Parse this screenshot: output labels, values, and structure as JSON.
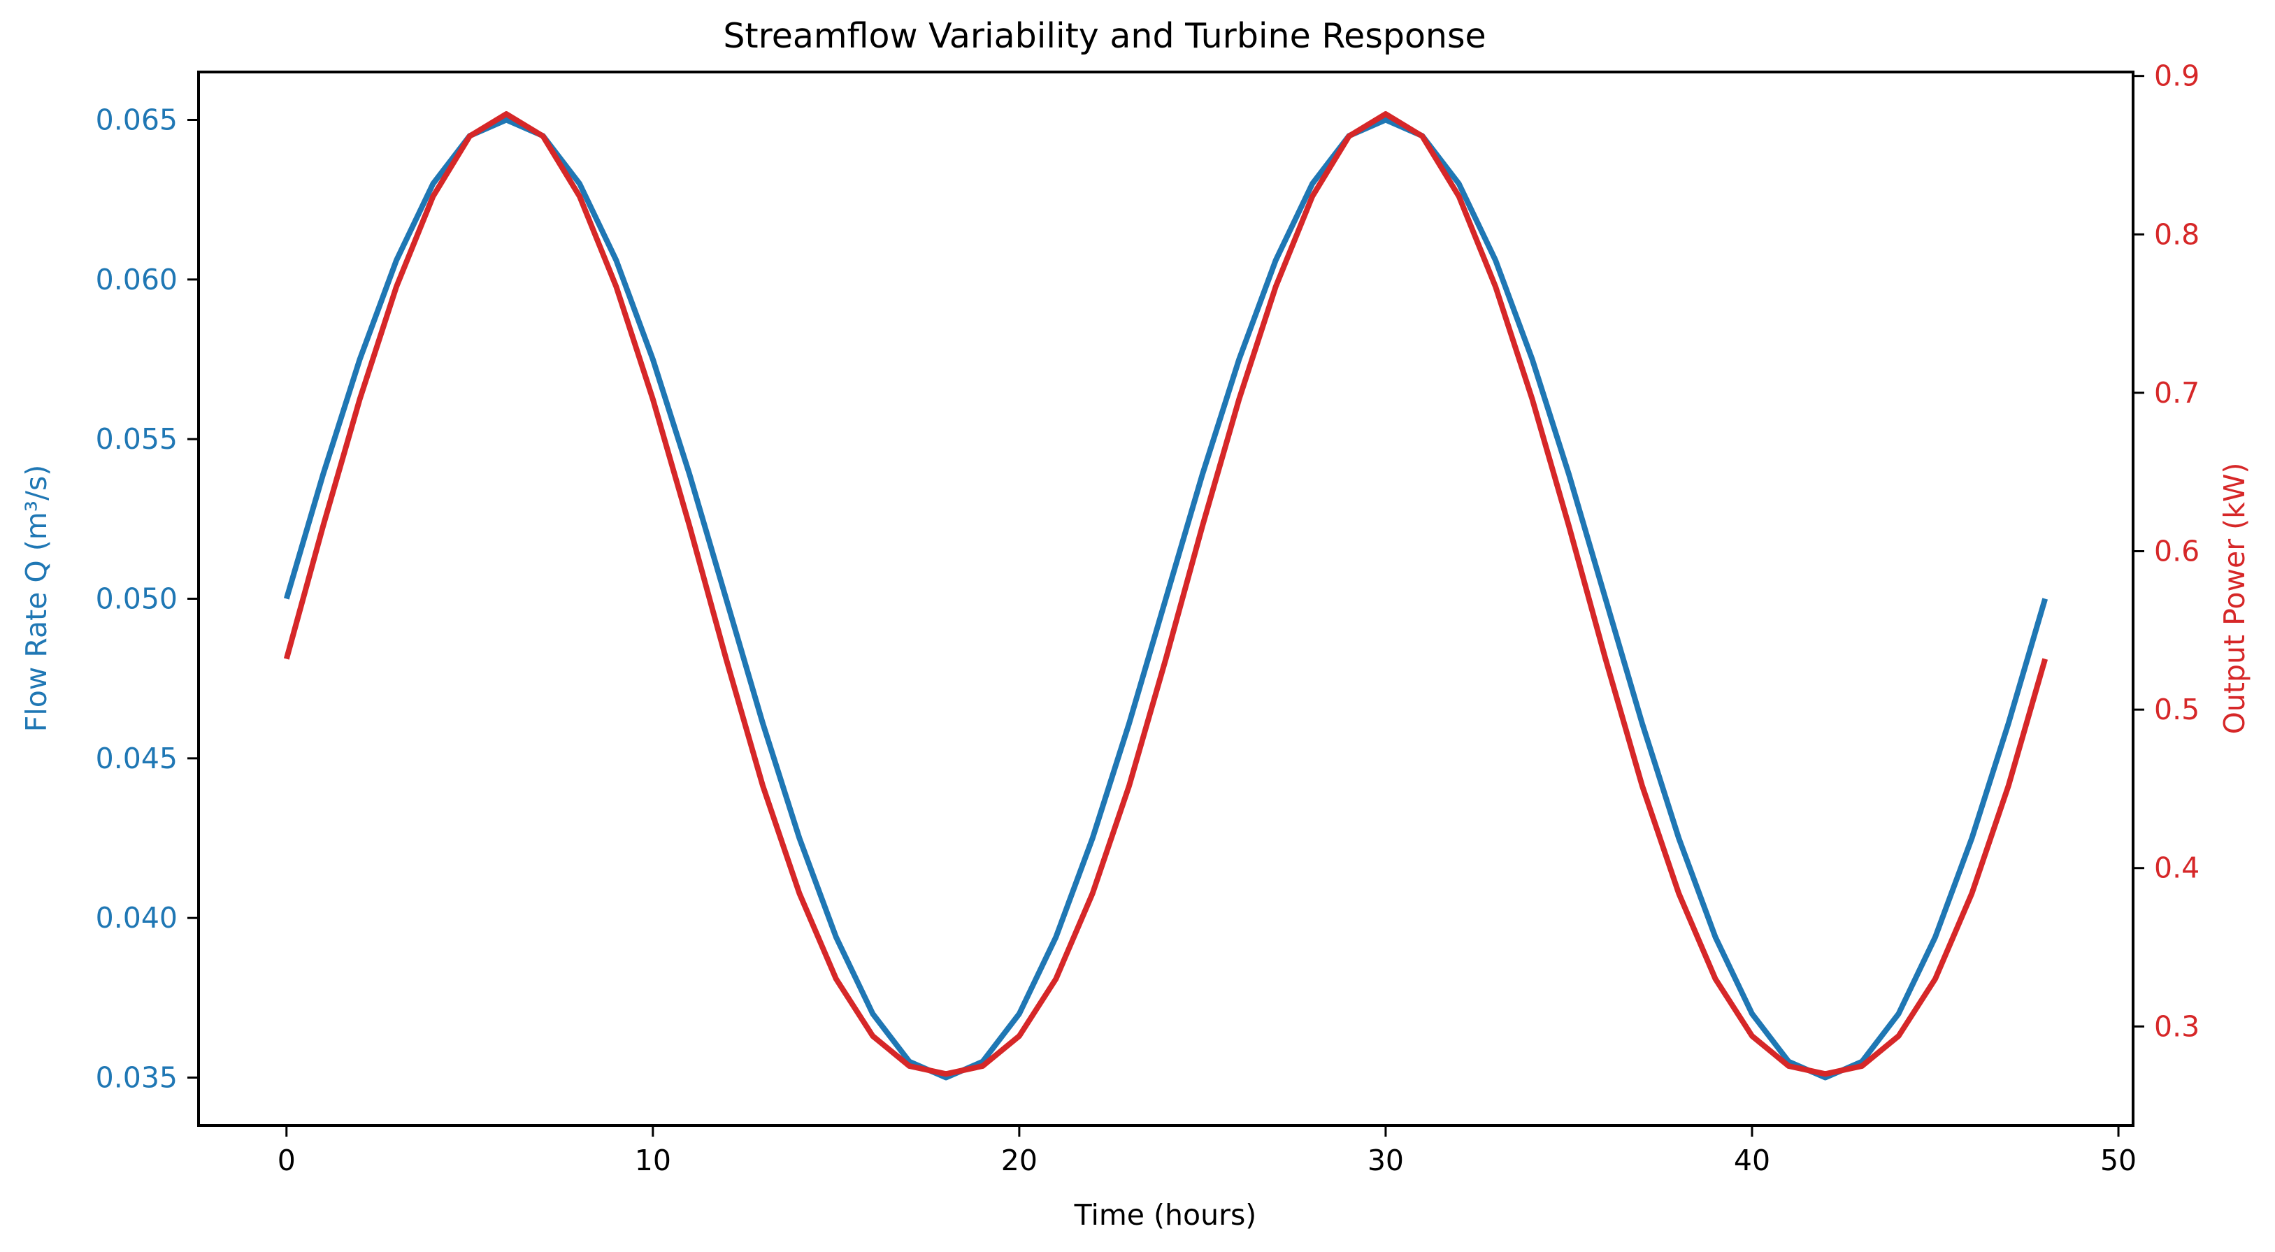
{
  "colors": {
    "flow": "#1f77b4",
    "power": "#d62728",
    "axis": "#000000",
    "background": "#ffffff"
  },
  "chart_data": {
    "type": "line",
    "title": "Streamflow Variability and Turbine Response",
    "xlabel": "Time (hours)",
    "ylabel_left": "Flow Rate Q (m³/s)",
    "ylabel_right": "Output Power (kW)",
    "xlim": [
      -2.4,
      50.4
    ],
    "ylim_left": [
      0.0335,
      0.0665
    ],
    "ylim_right": [
      0.2375,
      0.9025
    ],
    "x_ticks": [
      0,
      10,
      20,
      30,
      40,
      50
    ],
    "x_tick_labels": [
      "0",
      "10",
      "20",
      "30",
      "40",
      "50"
    ],
    "y_left_ticks": [
      0.035,
      0.04,
      0.045,
      0.05,
      0.055,
      0.06,
      0.065
    ],
    "y_left_tick_labels": [
      "0.035",
      "0.040",
      "0.045",
      "0.050",
      "0.055",
      "0.060",
      "0.065"
    ],
    "y_right_ticks": [
      0.3,
      0.4,
      0.5,
      0.6,
      0.7,
      0.8,
      0.9
    ],
    "y_right_tick_labels": [
      "0.3",
      "0.4",
      "0.5",
      "0.6",
      "0.7",
      "0.8",
      "0.9"
    ],
    "grid": false,
    "series": [
      {
        "name": "Flow Rate Q",
        "axis": "left",
        "color": "#1f77b4",
        "x": [
          0,
          1,
          2,
          3,
          4,
          5,
          6,
          7,
          8,
          9,
          10,
          11,
          12,
          13,
          14,
          15,
          16,
          17,
          18,
          19,
          20,
          21,
          22,
          23,
          24,
          25,
          26,
          27,
          28,
          29,
          30,
          31,
          32,
          33,
          34,
          35,
          36,
          37,
          38,
          39,
          40,
          41,
          42,
          43,
          44,
          45,
          46,
          47,
          48
        ],
        "y": [
          0.05,
          0.0539,
          0.0575,
          0.0606,
          0.063,
          0.0645,
          0.065,
          0.0645,
          0.063,
          0.0606,
          0.0575,
          0.0539,
          0.05,
          0.0461,
          0.0425,
          0.0394,
          0.037,
          0.0355,
          0.035,
          0.0355,
          0.037,
          0.0394,
          0.0425,
          0.0461,
          0.05,
          0.0539,
          0.0575,
          0.0606,
          0.063,
          0.0645,
          0.065,
          0.0645,
          0.063,
          0.0606,
          0.0575,
          0.0539,
          0.05,
          0.0461,
          0.0425,
          0.0394,
          0.037,
          0.0355,
          0.035,
          0.0355,
          0.037,
          0.0394,
          0.0425,
          0.0461,
          0.05
        ]
      },
      {
        "name": "Output Power",
        "axis": "right",
        "color": "#d62728",
        "x": [
          0,
          1,
          2,
          3,
          4,
          5,
          6,
          7,
          8,
          9,
          10,
          11,
          12,
          13,
          14,
          15,
          16,
          17,
          18,
          19,
          20,
          21,
          22,
          23,
          24,
          25,
          26,
          27,
          28,
          29,
          30,
          31,
          32,
          33,
          34,
          35,
          36,
          37,
          38,
          39,
          40,
          41,
          42,
          43,
          44,
          45,
          46,
          47,
          48
        ],
        "y": [
          0.532,
          0.616,
          0.696,
          0.767,
          0.824,
          0.862,
          0.876,
          0.862,
          0.824,
          0.767,
          0.696,
          0.616,
          0.532,
          0.452,
          0.384,
          0.33,
          0.294,
          0.275,
          0.27,
          0.275,
          0.294,
          0.33,
          0.384,
          0.452,
          0.532,
          0.616,
          0.696,
          0.767,
          0.824,
          0.862,
          0.876,
          0.862,
          0.824,
          0.767,
          0.696,
          0.616,
          0.532,
          0.452,
          0.384,
          0.33,
          0.294,
          0.275,
          0.27,
          0.275,
          0.294,
          0.33,
          0.384,
          0.452,
          0.532
        ]
      }
    ]
  }
}
